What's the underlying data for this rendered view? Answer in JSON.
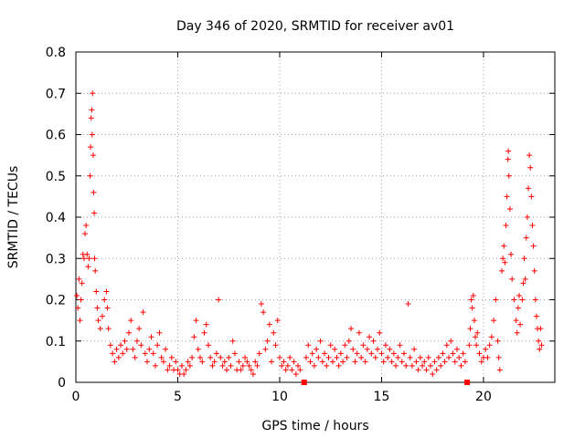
{
  "chart_data": {
    "type": "scatter",
    "title": "Day 346 of 2020, SRMTID for receiver av01",
    "xlabel": "GPS time / hours",
    "ylabel": "SRMTID / TECUs",
    "xlim": [
      0,
      23.5
    ],
    "ylim": [
      0,
      0.8
    ],
    "x_ticks": [
      0,
      5,
      10,
      15,
      20
    ],
    "y_ticks": [
      0,
      0.1,
      0.2,
      0.3,
      0.4,
      0.5,
      0.6,
      0.7,
      0.8
    ],
    "grid": true,
    "marker": "plus",
    "color": "#ff0000",
    "gap_markers_x": [
      11.2,
      19.2
    ],
    "series": [
      {
        "name": "SRMTID",
        "points": [
          [
            0.05,
            0.21
          ],
          [
            0.1,
            0.18
          ],
          [
            0.15,
            0.25
          ],
          [
            0.2,
            0.15
          ],
          [
            0.25,
            0.2
          ],
          [
            0.3,
            0.24
          ],
          [
            0.35,
            0.31
          ],
          [
            0.4,
            0.3
          ],
          [
            0.45,
            0.36
          ],
          [
            0.5,
            0.38
          ],
          [
            0.55,
            0.31
          ],
          [
            0.6,
            0.28
          ],
          [
            0.65,
            0.3
          ],
          [
            0.7,
            0.5
          ],
          [
            0.72,
            0.57
          ],
          [
            0.75,
            0.64
          ],
          [
            0.78,
            0.66
          ],
          [
            0.8,
            0.6
          ],
          [
            0.82,
            0.7
          ],
          [
            0.85,
            0.55
          ],
          [
            0.87,
            0.46
          ],
          [
            0.9,
            0.41
          ],
          [
            0.92,
            0.3
          ],
          [
            0.95,
            0.27
          ],
          [
            1.0,
            0.22
          ],
          [
            1.05,
            0.18
          ],
          [
            1.1,
            0.15
          ],
          [
            1.2,
            0.13
          ],
          [
            1.3,
            0.16
          ],
          [
            1.4,
            0.2
          ],
          [
            1.5,
            0.22
          ],
          [
            1.55,
            0.18
          ],
          [
            1.6,
            0.13
          ],
          [
            1.7,
            0.09
          ],
          [
            1.8,
            0.07
          ],
          [
            1.9,
            0.05
          ],
          [
            2.0,
            0.08
          ],
          [
            2.1,
            0.06
          ],
          [
            2.2,
            0.09
          ],
          [
            2.3,
            0.07
          ],
          [
            2.4,
            0.1
          ],
          [
            2.5,
            0.08
          ],
          [
            2.6,
            0.12
          ],
          [
            2.7,
            0.15
          ],
          [
            2.8,
            0.08
          ],
          [
            2.9,
            0.06
          ],
          [
            3.0,
            0.1
          ],
          [
            3.1,
            0.13
          ],
          [
            3.2,
            0.09
          ],
          [
            3.3,
            0.17
          ],
          [
            3.4,
            0.07
          ],
          [
            3.5,
            0.05
          ],
          [
            3.6,
            0.08
          ],
          [
            3.7,
            0.11
          ],
          [
            3.8,
            0.07
          ],
          [
            3.9,
            0.04
          ],
          [
            4.0,
            0.09
          ],
          [
            4.1,
            0.12
          ],
          [
            4.2,
            0.06
          ],
          [
            4.3,
            0.05
          ],
          [
            4.4,
            0.08
          ],
          [
            4.5,
            0.03
          ],
          [
            4.6,
            0.04
          ],
          [
            4.7,
            0.06
          ],
          [
            4.8,
            0.03
          ],
          [
            4.9,
            0.05
          ],
          [
            5.0,
            0.03
          ],
          [
            5.1,
            0.02
          ],
          [
            5.2,
            0.04
          ],
          [
            5.3,
            0.02
          ],
          [
            5.4,
            0.03
          ],
          [
            5.5,
            0.05
          ],
          [
            5.6,
            0.04
          ],
          [
            5.7,
            0.06
          ],
          [
            5.8,
            0.11
          ],
          [
            5.9,
            0.15
          ],
          [
            6.0,
            0.08
          ],
          [
            6.1,
            0.06
          ],
          [
            6.2,
            0.05
          ],
          [
            6.3,
            0.12
          ],
          [
            6.4,
            0.14
          ],
          [
            6.5,
            0.09
          ],
          [
            6.6,
            0.06
          ],
          [
            6.7,
            0.04
          ],
          [
            6.8,
            0.05
          ],
          [
            6.9,
            0.07
          ],
          [
            7.0,
            0.2
          ],
          [
            7.1,
            0.06
          ],
          [
            7.2,
            0.04
          ],
          [
            7.3,
            0.05
          ],
          [
            7.4,
            0.03
          ],
          [
            7.5,
            0.06
          ],
          [
            7.6,
            0.04
          ],
          [
            7.7,
            0.1
          ],
          [
            7.8,
            0.07
          ],
          [
            7.9,
            0.03
          ],
          [
            8.0,
            0.05
          ],
          [
            8.1,
            0.03
          ],
          [
            8.2,
            0.04
          ],
          [
            8.3,
            0.06
          ],
          [
            8.4,
            0.05
          ],
          [
            8.5,
            0.04
          ],
          [
            8.6,
            0.03
          ],
          [
            8.7,
            0.02
          ],
          [
            8.8,
            0.05
          ],
          [
            8.9,
            0.04
          ],
          [
            9.0,
            0.07
          ],
          [
            9.1,
            0.19
          ],
          [
            9.2,
            0.17
          ],
          [
            9.3,
            0.08
          ],
          [
            9.4,
            0.1
          ],
          [
            9.5,
            0.14
          ],
          [
            9.6,
            0.05
          ],
          [
            9.7,
            0.12
          ],
          [
            9.8,
            0.09
          ],
          [
            9.9,
            0.15
          ],
          [
            10.0,
            0.06
          ],
          [
            10.1,
            0.04
          ],
          [
            10.2,
            0.05
          ],
          [
            10.3,
            0.03
          ],
          [
            10.4,
            0.04
          ],
          [
            10.5,
            0.06
          ],
          [
            10.6,
            0.03
          ],
          [
            10.7,
            0.05
          ],
          [
            10.8,
            0.02
          ],
          [
            10.9,
            0.04
          ],
          [
            11.0,
            0.03
          ],
          [
            11.3,
            0.06
          ],
          [
            11.4,
            0.09
          ],
          [
            11.5,
            0.05
          ],
          [
            11.6,
            0.07
          ],
          [
            11.7,
            0.04
          ],
          [
            11.8,
            0.08
          ],
          [
            11.9,
            0.06
          ],
          [
            12.0,
            0.1
          ],
          [
            12.1,
            0.05
          ],
          [
            12.2,
            0.07
          ],
          [
            12.3,
            0.04
          ],
          [
            12.4,
            0.06
          ],
          [
            12.5,
            0.09
          ],
          [
            12.6,
            0.05
          ],
          [
            12.7,
            0.08
          ],
          [
            12.8,
            0.06
          ],
          [
            12.9,
            0.04
          ],
          [
            13.0,
            0.07
          ],
          [
            13.1,
            0.05
          ],
          [
            13.2,
            0.09
          ],
          [
            13.3,
            0.06
          ],
          [
            13.4,
            0.1
          ],
          [
            13.5,
            0.13
          ],
          [
            13.6,
            0.08
          ],
          [
            13.7,
            0.05
          ],
          [
            13.8,
            0.07
          ],
          [
            13.9,
            0.12
          ],
          [
            14.0,
            0.06
          ],
          [
            14.1,
            0.09
          ],
          [
            14.2,
            0.05
          ],
          [
            14.3,
            0.08
          ],
          [
            14.4,
            0.11
          ],
          [
            14.5,
            0.07
          ],
          [
            14.6,
            0.1
          ],
          [
            14.7,
            0.06
          ],
          [
            14.8,
            0.08
          ],
          [
            14.9,
            0.12
          ],
          [
            15.0,
            0.07
          ],
          [
            15.1,
            0.05
          ],
          [
            15.2,
            0.09
          ],
          [
            15.3,
            0.06
          ],
          [
            15.4,
            0.08
          ],
          [
            15.5,
            0.05
          ],
          [
            15.6,
            0.07
          ],
          [
            15.7,
            0.04
          ],
          [
            15.8,
            0.06
          ],
          [
            15.9,
            0.09
          ],
          [
            16.0,
            0.05
          ],
          [
            16.1,
            0.07
          ],
          [
            16.2,
            0.04
          ],
          [
            16.3,
            0.19
          ],
          [
            16.4,
            0.06
          ],
          [
            16.5,
            0.04
          ],
          [
            16.6,
            0.08
          ],
          [
            16.7,
            0.05
          ],
          [
            16.8,
            0.03
          ],
          [
            16.9,
            0.06
          ],
          [
            17.0,
            0.04
          ],
          [
            17.1,
            0.05
          ],
          [
            17.2,
            0.03
          ],
          [
            17.3,
            0.06
          ],
          [
            17.4,
            0.04
          ],
          [
            17.5,
            0.02
          ],
          [
            17.6,
            0.05
          ],
          [
            17.7,
            0.03
          ],
          [
            17.8,
            0.06
          ],
          [
            17.9,
            0.04
          ],
          [
            18.0,
            0.07
          ],
          [
            18.1,
            0.05
          ],
          [
            18.2,
            0.09
          ],
          [
            18.3,
            0.06
          ],
          [
            18.4,
            0.1
          ],
          [
            18.5,
            0.07
          ],
          [
            18.6,
            0.05
          ],
          [
            18.7,
            0.08
          ],
          [
            18.8,
            0.06
          ],
          [
            18.9,
            0.04
          ],
          [
            19.0,
            0.07
          ],
          [
            19.1,
            0.05
          ],
          [
            19.3,
            0.09
          ],
          [
            19.35,
            0.13
          ],
          [
            19.4,
            0.2
          ],
          [
            19.45,
            0.18
          ],
          [
            19.5,
            0.21
          ],
          [
            19.55,
            0.15
          ],
          [
            19.6,
            0.11
          ],
          [
            19.65,
            0.09
          ],
          [
            19.7,
            0.12
          ],
          [
            19.8,
            0.07
          ],
          [
            19.9,
            0.05
          ],
          [
            20.0,
            0.06
          ],
          [
            20.1,
            0.08
          ],
          [
            20.2,
            0.06
          ],
          [
            20.3,
            0.09
          ],
          [
            20.4,
            0.11
          ],
          [
            20.5,
            0.15
          ],
          [
            20.6,
            0.2
          ],
          [
            20.7,
            0.1
          ],
          [
            20.75,
            0.06
          ],
          [
            20.8,
            0.03
          ],
          [
            20.9,
            0.27
          ],
          [
            20.95,
            0.3
          ],
          [
            21.0,
            0.33
          ],
          [
            21.05,
            0.29
          ],
          [
            21.1,
            0.38
          ],
          [
            21.15,
            0.45
          ],
          [
            21.2,
            0.54
          ],
          [
            21.22,
            0.56
          ],
          [
            21.25,
            0.5
          ],
          [
            21.3,
            0.42
          ],
          [
            21.35,
            0.31
          ],
          [
            21.4,
            0.25
          ],
          [
            21.5,
            0.2
          ],
          [
            21.6,
            0.15
          ],
          [
            21.65,
            0.12
          ],
          [
            21.7,
            0.18
          ],
          [
            21.75,
            0.21
          ],
          [
            21.8,
            0.14
          ],
          [
            21.9,
            0.2
          ],
          [
            21.95,
            0.24
          ],
          [
            22.0,
            0.3
          ],
          [
            22.05,
            0.25
          ],
          [
            22.1,
            0.35
          ],
          [
            22.15,
            0.4
          ],
          [
            22.2,
            0.47
          ],
          [
            22.25,
            0.55
          ],
          [
            22.3,
            0.52
          ],
          [
            22.35,
            0.45
          ],
          [
            22.4,
            0.38
          ],
          [
            22.45,
            0.33
          ],
          [
            22.5,
            0.27
          ],
          [
            22.55,
            0.2
          ],
          [
            22.6,
            0.16
          ],
          [
            22.65,
            0.13
          ],
          [
            22.7,
            0.1
          ],
          [
            22.75,
            0.08
          ],
          [
            22.8,
            0.13
          ],
          [
            22.85,
            0.09
          ]
        ]
      }
    ]
  }
}
